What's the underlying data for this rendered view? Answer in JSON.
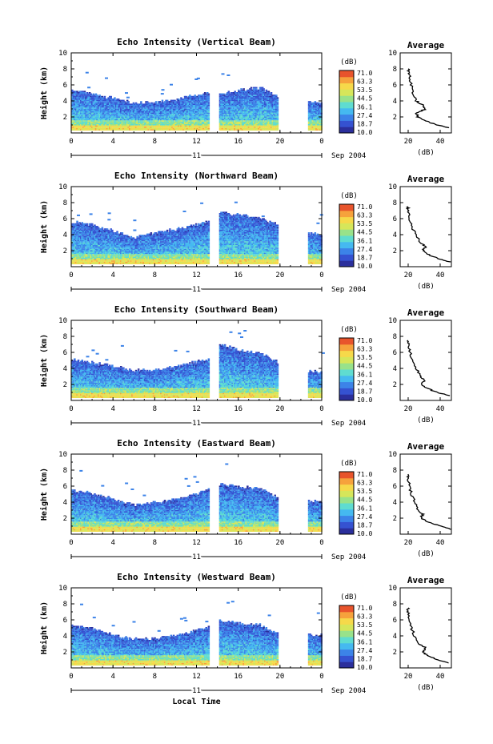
{
  "chart_data": [
    {
      "type": "heatmap",
      "title": "Echo Intensity (Vertical Beam)",
      "ylabel": "Height (km)",
      "xlim": [
        0,
        24
      ],
      "ylim": [
        0,
        10
      ],
      "xticks": [
        "0",
        "4",
        "8",
        "12",
        "16",
        "20",
        "0"
      ],
      "yticks": [
        "2",
        "4",
        "6",
        "8",
        "10"
      ],
      "date_day": "11",
      "date_month": "Sep 2004",
      "colorbar_unit": "(dB)",
      "colorbar_labels": [
        "71.0",
        "63.3",
        "53.5",
        "44.5",
        "36.1",
        "27.4",
        "18.7",
        "10.0"
      ],
      "data_gaps_local_hours": [
        [
          13.1,
          14.1
        ],
        [
          19.7,
          22.6
        ]
      ],
      "echo_top_km": {
        "hours": [
          0,
          2,
          4,
          6,
          8,
          10,
          12,
          13,
          14,
          16,
          18,
          19.6,
          22.6,
          24
        ],
        "top": [
          5.3,
          4.8,
          4.2,
          3.6,
          3.8,
          4.1,
          4.7,
          5.0,
          4.8,
          5.2,
          5.6,
          4.5,
          3.8,
          3.7
        ]
      },
      "average_profile": {
        "title": "Average",
        "xlabel": "(dB)",
        "xticks": [
          "20",
          "40"
        ],
        "xlim": [
          15,
          47
        ],
        "db": [
          46,
          38,
          31,
          26,
          25,
          31,
          29,
          25,
          23,
          22,
          21,
          20,
          20
        ],
        "height_km": [
          0.6,
          1.0,
          1.5,
          2.0,
          2.5,
          3.0,
          3.5,
          4.0,
          5.0,
          6.0,
          7.0,
          7.5,
          8.0
        ]
      }
    },
    {
      "type": "heatmap",
      "title": "Echo Intensity (Northward Beam)",
      "ylabel": "Height (km)",
      "xlim": [
        0,
        24
      ],
      "ylim": [
        0,
        10
      ],
      "xticks": [
        "0",
        "4",
        "8",
        "12",
        "16",
        "20",
        "0"
      ],
      "yticks": [
        "2",
        "4",
        "6",
        "8",
        "10"
      ],
      "date_day": "11",
      "date_month": "Sep 2004",
      "colorbar_unit": "(dB)",
      "colorbar_labels": [
        "71.0",
        "63.3",
        "53.5",
        "44.5",
        "36.1",
        "27.4",
        "18.7",
        "10.0"
      ],
      "data_gaps_local_hours": [
        [
          13.1,
          14.1
        ],
        [
          19.7,
          22.6
        ]
      ],
      "echo_top_km": {
        "hours": [
          0,
          2,
          4,
          6,
          8,
          10,
          12,
          13,
          14,
          16,
          18,
          19.6,
          22.6,
          24
        ],
        "top": [
          5.6,
          5.1,
          4.4,
          3.6,
          4.2,
          4.6,
          5.2,
          5.5,
          6.8,
          6.4,
          6.0,
          5.2,
          4.1,
          4.0
        ]
      },
      "average_profile": {
        "title": "Average",
        "xlabel": "(dB)",
        "xticks": [
          "20",
          "40"
        ],
        "xlim": [
          15,
          47
        ],
        "db": [
          46,
          39,
          33,
          29,
          31,
          28,
          25,
          22,
          21,
          20,
          20
        ],
        "height_km": [
          0.6,
          1.0,
          1.5,
          2.0,
          2.5,
          3.0,
          4.0,
          5.0,
          6.0,
          7.0,
          7.5
        ]
      }
    },
    {
      "type": "heatmap",
      "title": "Echo Intensity (Southward Beam)",
      "ylabel": "Height (km)",
      "xlim": [
        0,
        24
      ],
      "ylim": [
        0,
        10
      ],
      "xticks": [
        "0",
        "4",
        "8",
        "12",
        "16",
        "20",
        "0"
      ],
      "yticks": [
        "2",
        "4",
        "6",
        "8",
        "10"
      ],
      "date_day": "11",
      "date_month": "Sep 2004",
      "colorbar_unit": "(dB)",
      "colorbar_labels": [
        "71.0",
        "63.3",
        "53.5",
        "44.5",
        "36.1",
        "27.4",
        "18.7",
        "10.0"
      ],
      "data_gaps_local_hours": [
        [
          13.1,
          14.1
        ],
        [
          19.7,
          22.6
        ]
      ],
      "echo_top_km": {
        "hours": [
          0,
          2,
          4,
          6,
          8,
          10,
          12,
          13,
          14,
          16,
          18,
          19.6,
          22.6,
          24
        ],
        "top": [
          5.0,
          4.6,
          4.2,
          3.6,
          3.8,
          4.2,
          4.8,
          5.0,
          7.0,
          6.2,
          5.8,
          4.8,
          3.5,
          3.5
        ]
      },
      "average_profile": {
        "title": "Average",
        "xlabel": "(dB)",
        "xticks": [
          "20",
          "40"
        ],
        "xlim": [
          15,
          47
        ],
        "db": [
          46,
          38,
          32,
          28,
          30,
          28,
          25,
          23,
          21,
          20,
          20
        ],
        "height_km": [
          0.6,
          1.0,
          1.5,
          2.0,
          2.5,
          3.0,
          4.0,
          5.0,
          6.0,
          7.0,
          7.5
        ]
      }
    },
    {
      "type": "heatmap",
      "title": "Echo Intensity (Eastward Beam)",
      "ylabel": "Height (km)",
      "xlim": [
        0,
        24
      ],
      "ylim": [
        0,
        10
      ],
      "xticks": [
        "0",
        "4",
        "8",
        "12",
        "16",
        "20",
        "0"
      ],
      "yticks": [
        "2",
        "4",
        "6",
        "8",
        "10"
      ],
      "date_day": "11",
      "date_month": "Sep 2004",
      "colorbar_unit": "(dB)",
      "colorbar_labels": [
        "71.0",
        "63.3",
        "53.5",
        "44.5",
        "36.1",
        "27.4",
        "18.7",
        "10.0"
      ],
      "data_gaps_local_hours": [
        [
          13.1,
          14.1
        ],
        [
          19.7,
          22.6
        ]
      ],
      "echo_top_km": {
        "hours": [
          0,
          2,
          4,
          6,
          8,
          10,
          12,
          13,
          14,
          16,
          18,
          19.6,
          22.6,
          24
        ],
        "top": [
          5.4,
          5.0,
          4.3,
          3.6,
          3.9,
          4.3,
          5.0,
          5.4,
          6.2,
          5.9,
          5.6,
          4.6,
          4.0,
          4.0
        ]
      },
      "average_profile": {
        "title": "Average",
        "xlabel": "(dB)",
        "xticks": [
          "20",
          "40"
        ],
        "xlim": [
          15,
          47
        ],
        "db": [
          47,
          40,
          33,
          28,
          29,
          26,
          24,
          22,
          21,
          20,
          20
        ],
        "height_km": [
          0.6,
          1.0,
          1.5,
          2.0,
          2.5,
          3.0,
          4.0,
          5.0,
          6.0,
          7.0,
          7.5
        ]
      }
    },
    {
      "type": "heatmap",
      "title": "Echo Intensity (Westward Beam)",
      "ylabel": "Height (km)",
      "xlim": [
        0,
        24
      ],
      "ylim": [
        0,
        10
      ],
      "xticks": [
        "0",
        "4",
        "8",
        "12",
        "16",
        "20",
        "0"
      ],
      "yticks": [
        "2",
        "4",
        "6",
        "8",
        "10"
      ],
      "date_day": "11",
      "date_month": "Sep 2004",
      "colorbar_unit": "(dB)",
      "colorbar_labels": [
        "71.0",
        "63.3",
        "53.5",
        "44.5",
        "36.1",
        "27.4",
        "18.7",
        "10.0"
      ],
      "data_gaps_local_hours": [
        [
          13.1,
          14.1
        ],
        [
          19.7,
          22.6
        ]
      ],
      "echo_top_km": {
        "hours": [
          0,
          2,
          4,
          6,
          8,
          10,
          12,
          13,
          14,
          16,
          18,
          19.6,
          22.6,
          24
        ],
        "top": [
          5.2,
          4.9,
          4.0,
          3.5,
          3.6,
          4.0,
          4.7,
          5.0,
          5.8,
          5.5,
          5.3,
          4.2,
          4.0,
          4.0
        ]
      },
      "average_profile": {
        "title": "Average",
        "xlabel": "(dB)",
        "xticks": [
          "20",
          "40"
        ],
        "xlim": [
          15,
          47
        ],
        "db": [
          46,
          39,
          32,
          29,
          31,
          27,
          24,
          22,
          21,
          20,
          20
        ],
        "height_km": [
          0.6,
          1.0,
          1.5,
          2.0,
          2.5,
          3.0,
          4.0,
          5.0,
          6.0,
          7.0,
          7.5
        ]
      }
    }
  ],
  "figure": {
    "xlabel": "Local Time"
  },
  "colormap": [
    "#2b2f9c",
    "#3552d1",
    "#3c83e8",
    "#45b9f0",
    "#5fdcd0",
    "#98e28a",
    "#d6e65a",
    "#f6d94a",
    "#f6a23c",
    "#e8542c"
  ]
}
